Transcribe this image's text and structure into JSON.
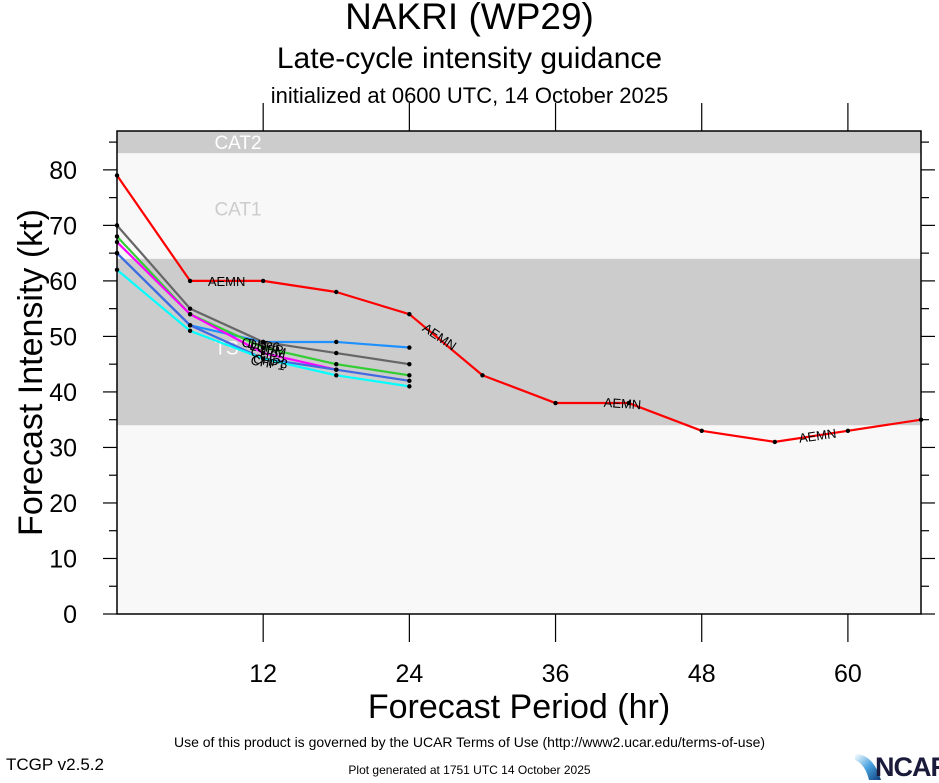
{
  "header": {
    "title": "NAKRI (WP29)",
    "subtitle": "Late-cycle intensity guidance",
    "init": "initialized at 0600 UTC, 14 October 2025"
  },
  "footer": {
    "terms": "Use of this product is governed by the UCAR Terms of Use (http://www2.ucar.edu/terms-of-use)",
    "generated": "Plot generated at 1751 UTC   14 October 2025",
    "version": "TCGP v2.5.2",
    "logo_text": "NCAR"
  },
  "chart_data": {
    "type": "line",
    "title": "NAKRI (WP29)",
    "subtitle": "Late-cycle intensity guidance",
    "xlabel": "Forecast Period (hr)",
    "ylabel": "Forecast Intensity (kt)",
    "xlim": [
      0,
      66
    ],
    "ylim": [
      0,
      87
    ],
    "xticks": [
      12,
      24,
      36,
      48,
      60
    ],
    "yticks": [
      0,
      10,
      20,
      30,
      40,
      50,
      60,
      70,
      80
    ],
    "y_minor_step": 5,
    "grid": false,
    "legend": "inline-labels",
    "bands": [
      {
        "name": "TS",
        "from": 34,
        "to": 64,
        "color": "#cccccc",
        "label_color": "#ffffff",
        "label_at": [
          8,
          48
        ]
      },
      {
        "name": "CAT1",
        "from": 64,
        "to": 83,
        "color": "#f8f8f8",
        "label_color": "#cccccc",
        "label_at": [
          8,
          73
        ]
      },
      {
        "name": "CAT2",
        "from": 83,
        "to": 87,
        "color": "#cccccc",
        "label_color": "#ffffff",
        "label_at": [
          8,
          85
        ]
      }
    ],
    "below_band_color": "#f8f8f8",
    "series": [
      {
        "name": "AEMN",
        "color": "#ff0000",
        "x": [
          0,
          6,
          12,
          18,
          24,
          30,
          36,
          42,
          48,
          54,
          60,
          66
        ],
        "y": [
          79,
          60,
          60,
          58,
          54,
          43,
          38,
          38,
          33,
          31,
          33,
          35
        ],
        "labels": [
          [
            9,
            60,
            0
          ],
          [
            26.5,
            50,
            34
          ],
          [
            41.5,
            38,
            4
          ],
          [
            57.5,
            32.2,
            -8
          ]
        ]
      },
      {
        "name": "CHIP6",
        "color": "#1e90ff",
        "x": [
          0,
          6,
          12,
          18,
          24
        ],
        "y": [
          65,
          52,
          49,
          49,
          48
        ],
        "labels": [
          [
            11.8,
            48.6,
            8
          ]
        ]
      },
      {
        "name": "DSHP",
        "color": "#666666",
        "x": [
          0,
          6,
          12,
          18,
          24
        ],
        "y": [
          70,
          55,
          49,
          47,
          45
        ],
        "labels": [
          [
            12.2,
            48.2,
            12
          ]
        ]
      },
      {
        "name": "LGEM",
        "color": "#32cd32",
        "x": [
          0,
          6,
          12,
          18,
          24
        ],
        "y": [
          68,
          54,
          48,
          45,
          43
        ],
        "labels": [
          [
            12.4,
            47.8,
            12
          ]
        ]
      },
      {
        "name": "CHP5",
        "color": "#ff00ff",
        "x": [
          0,
          6,
          12,
          18
        ],
        "y": [
          67,
          54,
          47,
          44
        ],
        "labels": [
          [
            12.4,
            46.8,
            12
          ]
        ]
      },
      {
        "name": "CHP3",
        "color": "#4169e1",
        "x": [
          0,
          6,
          12,
          18,
          24
        ],
        "y": [
          65,
          52,
          46,
          44,
          42
        ],
        "labels": [
          [
            12.6,
            45.6,
            10
          ]
        ]
      },
      {
        "name": "CHP1",
        "color": "#00ffff",
        "x": [
          0,
          6,
          12,
          18,
          24
        ],
        "y": [
          62,
          51,
          46,
          43,
          41
        ],
        "labels": [
          [
            12.4,
            45.3,
            10
          ]
        ]
      }
    ]
  }
}
